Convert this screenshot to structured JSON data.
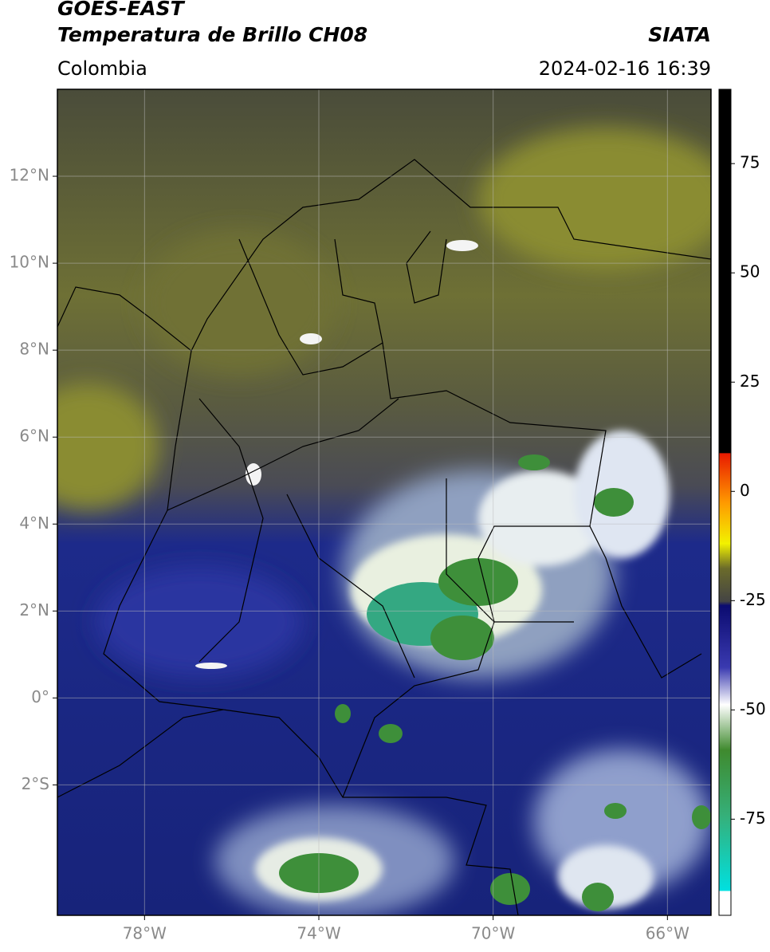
{
  "header": {
    "satellite": "GOES-EAST",
    "product": "Temperatura de Brillo CH08",
    "source": "SIATA",
    "region": "Colombia",
    "datetime": "2024-02-16 16:39"
  },
  "map": {
    "lonlim": [
      -80,
      -65
    ],
    "latlim": [
      -5,
      14
    ],
    "xticks": [
      {
        "value": -78,
        "label": "78°W"
      },
      {
        "value": -74,
        "label": "74°W"
      },
      {
        "value": -70,
        "label": "70°W"
      },
      {
        "value": -66,
        "label": "66°W"
      }
    ],
    "yticks": [
      {
        "value": 12,
        "label": "12°N"
      },
      {
        "value": 10,
        "label": "10°N"
      },
      {
        "value": 8,
        "label": "8°N"
      },
      {
        "value": 6,
        "label": "6°N"
      },
      {
        "value": 4,
        "label": "4°N"
      },
      {
        "value": 2,
        "label": "2°N"
      },
      {
        "value": 0,
        "label": "0°"
      },
      {
        "value": -2,
        "label": "2°S"
      }
    ],
    "grid": true
  },
  "colorbar": {
    "lim": [
      -97,
      92
    ],
    "ticks": [
      75,
      50,
      25,
      0,
      -25,
      -50,
      -75
    ]
  }
}
